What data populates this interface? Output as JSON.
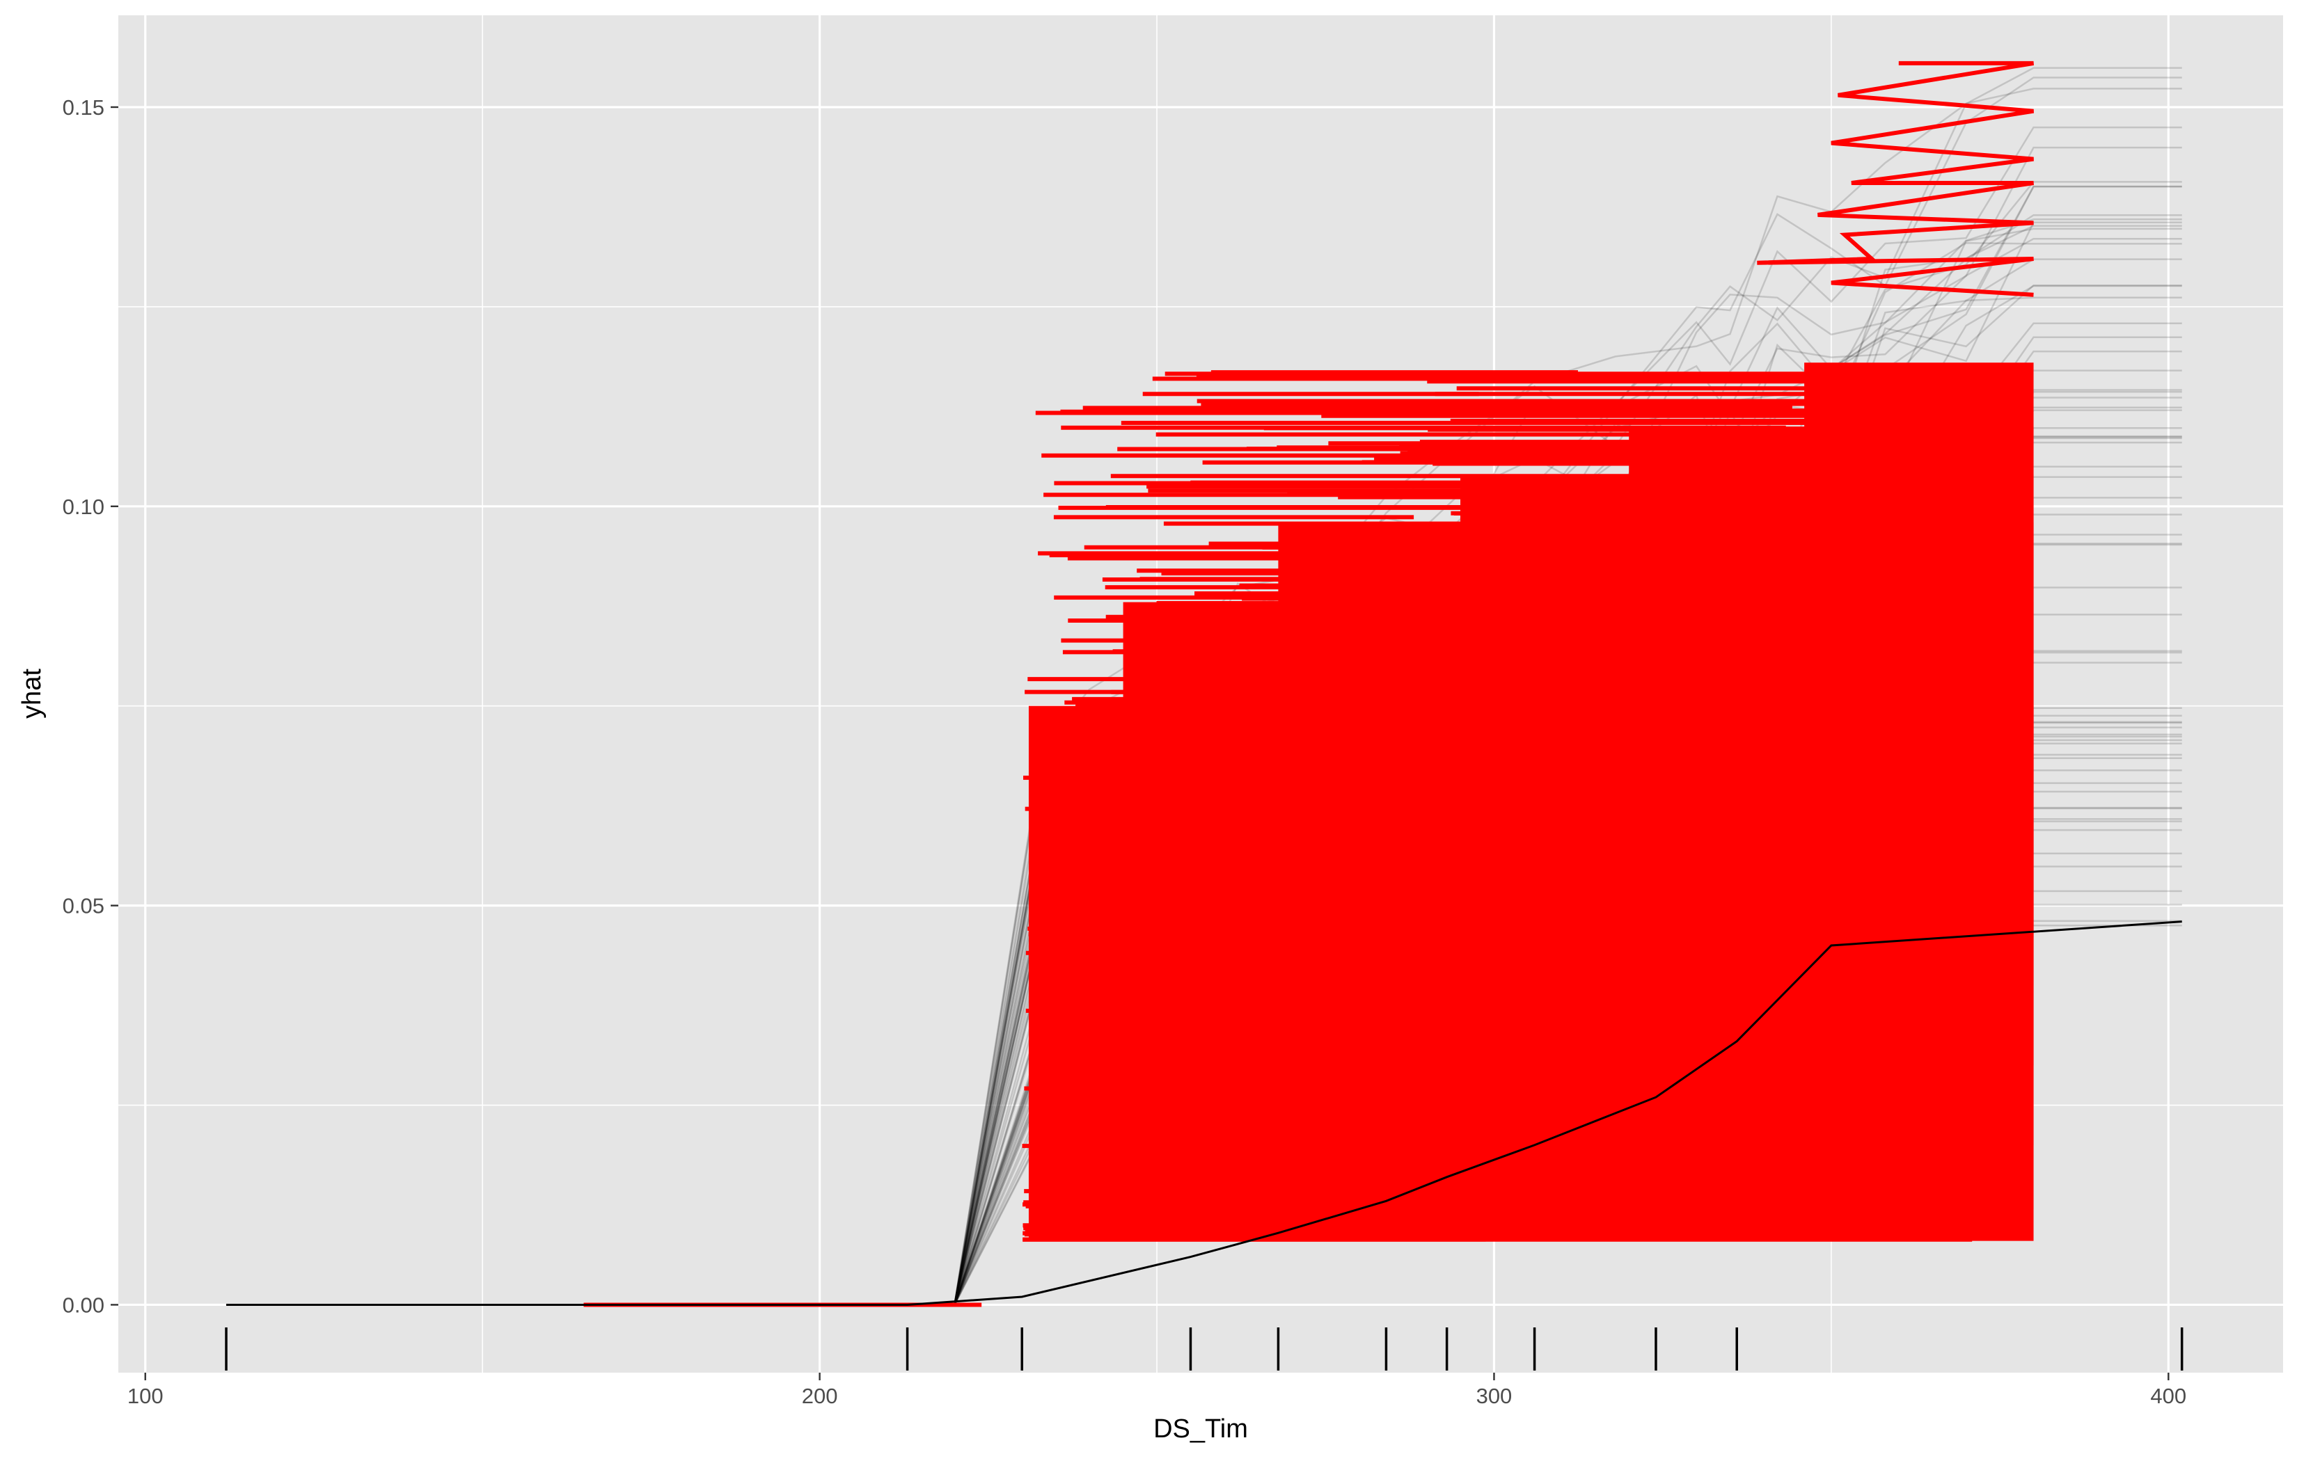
{
  "chart_data": {
    "type": "line",
    "title": "",
    "xlabel": "DS_Tim",
    "ylabel": "yhat",
    "xlim": [
      96,
      417
    ],
    "ylim": [
      -0.0085,
      0.1615
    ],
    "x_ticks": [
      100,
      200,
      300,
      400
    ],
    "y_ticks": [
      0.0,
      0.05,
      0.1,
      0.15
    ],
    "x_tick_labels": [
      "100",
      "200",
      "300",
      "400"
    ],
    "y_tick_labels": [
      "0.00",
      "0.05",
      "0.10",
      "0.15"
    ],
    "grid": true,
    "legend": "none",
    "colors": {
      "panel": "#e5e5e5",
      "grid": "#ffffff",
      "highlight": "#ff0000",
      "ice_lines": "#000000",
      "axis_text": "#4d4d4d",
      "rug": "#000000"
    },
    "rug_x": [
      112,
      213,
      230,
      255,
      268,
      284,
      293,
      306,
      324,
      336,
      402
    ],
    "reference_line": {
      "x": [
        112,
        213,
        230,
        255,
        268,
        284,
        293,
        306,
        324,
        336,
        350,
        402
      ],
      "y": [
        0.0,
        0.0,
        0.001,
        0.006,
        0.009,
        0.013,
        0.016,
        0.02,
        0.026,
        0.033,
        0.045,
        0.048
      ]
    },
    "ice_background": {
      "x_grid": [
        112,
        220,
        228,
        233,
        240,
        246,
        253,
        262,
        272,
        284,
        295,
        306,
        318,
        330,
        335,
        342,
        350,
        358,
        370,
        380,
        402
      ],
      "start_range": [
        0.046,
        0.156
      ],
      "end_range": [
        0.046,
        0.156
      ]
    },
    "highlight_series": {
      "x_range": [
        165,
        380
      ],
      "y_range": [
        0.0,
        0.156
      ],
      "description_count": 300
    }
  }
}
